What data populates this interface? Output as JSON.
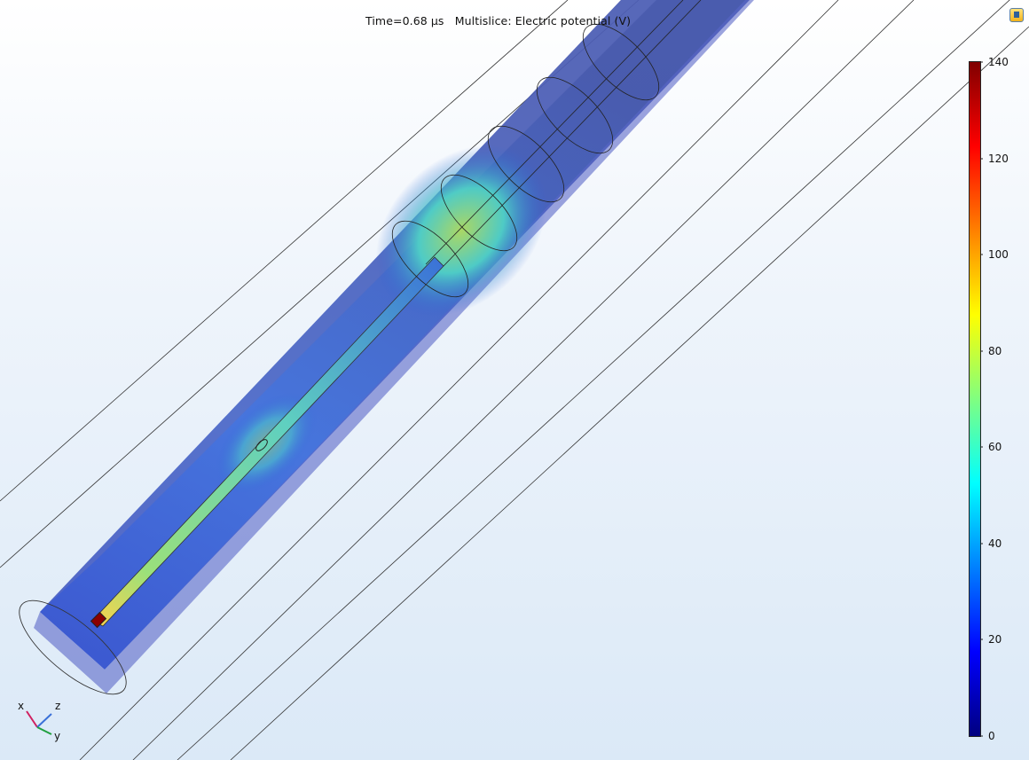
{
  "plot": {
    "title": "Time=0.68 µs   Multislice: Electric potential (V)"
  },
  "colorbar": {
    "ticks": [
      "140",
      "120",
      "100",
      "80",
      "60",
      "40",
      "20",
      "0"
    ],
    "min": 0,
    "max": 140,
    "colormap": [
      "#000080",
      "#0000ff",
      "#0080ff",
      "#00ffff",
      "#80ff80",
      "#ffff00",
      "#ff8000",
      "#ff0000",
      "#800000"
    ]
  },
  "triad": {
    "x": "x",
    "y": "y",
    "z": "z"
  },
  "toolbar": {
    "icon": "export-icon"
  }
}
